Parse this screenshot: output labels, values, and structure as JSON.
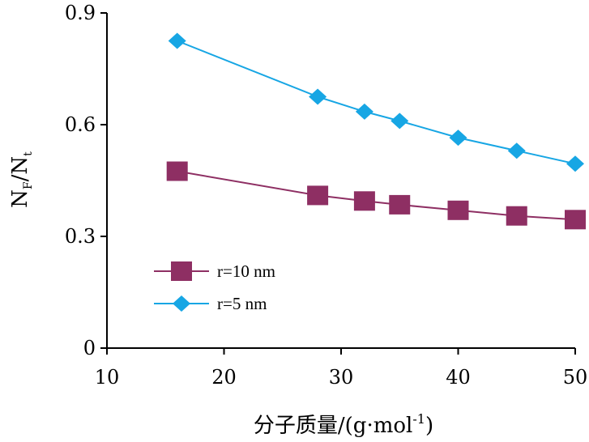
{
  "chart_data": {
    "type": "line",
    "xlabel_main": "分子质量/(g·mol",
    "xlabel_sup": "-1",
    "xlabel_close": ")",
    "ylabel_n": "N",
    "ylabel_sub_f": "F",
    "ylabel_slash": "/N",
    "ylabel_sub_t": "t",
    "xlim": [
      10,
      50
    ],
    "ylim": [
      0,
      0.9
    ],
    "x_ticks": [
      10,
      20,
      30,
      40,
      50
    ],
    "x_tick_labels": [
      "10",
      "20",
      "30",
      "40",
      "50"
    ],
    "y_ticks": [
      0,
      0.3,
      0.6,
      0.9
    ],
    "y_tick_labels": [
      "0",
      "0.3",
      "0.6",
      "0.9"
    ],
    "grid": false,
    "legend_position": "left-middle",
    "series": [
      {
        "name": "r=10 nm",
        "marker": "square",
        "color": "#8E2F63",
        "x": [
          16,
          28,
          32,
          35,
          40,
          45,
          50
        ],
        "y": [
          0.475,
          0.41,
          0.395,
          0.385,
          0.37,
          0.355,
          0.345
        ]
      },
      {
        "name": "r=5 nm",
        "marker": "diamond",
        "color": "#17A6E4",
        "x": [
          16,
          28,
          32,
          35,
          40,
          45,
          50
        ],
        "y": [
          0.825,
          0.675,
          0.635,
          0.61,
          0.565,
          0.53,
          0.495
        ]
      }
    ]
  }
}
